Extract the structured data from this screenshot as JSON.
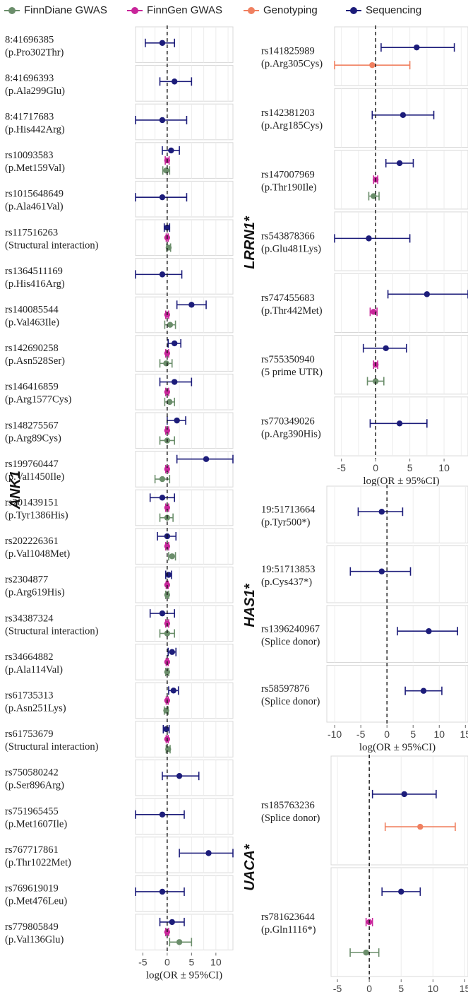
{
  "legend": [
    {
      "label": "FinnDiane GWAS",
      "color": "#6b8e6b",
      "key": "finndiane"
    },
    {
      "label": "FinnGen GWAS",
      "color": "#c8259a",
      "key": "finngen"
    },
    {
      "label": "Genotyping",
      "color": "#f08060",
      "key": "genotyping"
    },
    {
      "label": "Sequencing",
      "color": "#1c1c7a",
      "key": "sequencing"
    }
  ],
  "chart_data": [
    {
      "type": "forest",
      "gene": "ANK1",
      "xlabel": "log(OR ± 95%CI)",
      "xlim": [
        -6.5,
        13.5
      ],
      "xticks": [
        -5,
        0,
        5,
        10
      ],
      "grid": true,
      "variants": [
        {
          "id": "8:41696385",
          "desc": "(p.Pro302Thr)",
          "points": [
            {
              "source": "sequencing",
              "est": -1.0,
              "lo": -4.5,
              "hi": 1.5
            }
          ]
        },
        {
          "id": "8:41696393",
          "desc": "(p.Ala299Glu)",
          "points": [
            {
              "source": "sequencing",
              "est": 1.5,
              "lo": -1.5,
              "hi": 5.0
            }
          ]
        },
        {
          "id": "8:41717683",
          "desc": "(p.His442Arg)",
          "points": [
            {
              "source": "sequencing",
              "est": -1.0,
              "lo": -6.5,
              "hi": 4.0
            }
          ]
        },
        {
          "id": "rs10093583",
          "desc": "(p.Met159Val)",
          "points": [
            {
              "source": "sequencing",
              "est": 0.8,
              "lo": -1.0,
              "hi": 2.5
            },
            {
              "source": "finngen",
              "est": 0.0,
              "lo": -0.4,
              "hi": 0.4
            },
            {
              "source": "finndiane",
              "est": -0.2,
              "lo": -0.9,
              "hi": 0.5
            }
          ]
        },
        {
          "id": "rs1015648649",
          "desc": "(p.Ala461Val)",
          "points": [
            {
              "source": "sequencing",
              "est": -1.0,
              "lo": -6.5,
              "hi": 4.0
            }
          ]
        },
        {
          "id": "rs117516263",
          "desc": "(Structural interaction)",
          "points": [
            {
              "source": "sequencing",
              "est": 0.0,
              "lo": -0.6,
              "hi": 0.5
            },
            {
              "source": "finngen",
              "est": 0.0,
              "lo": -0.2,
              "hi": 0.2
            },
            {
              "source": "finndiane",
              "est": 0.3,
              "lo": -0.1,
              "hi": 0.7
            }
          ]
        },
        {
          "id": "rs1364511169",
          "desc": "(p.His416Arg)",
          "points": [
            {
              "source": "sequencing",
              "est": -1.0,
              "lo": -6.5,
              "hi": 3.0
            }
          ]
        },
        {
          "id": "rs140085544",
          "desc": "(p.Val463Ile)",
          "points": [
            {
              "source": "sequencing",
              "est": 5.0,
              "lo": 2.0,
              "hi": 8.0
            },
            {
              "source": "finngen",
              "est": 0.0,
              "lo": -0.3,
              "hi": 0.3
            },
            {
              "source": "finndiane",
              "est": 0.6,
              "lo": -0.5,
              "hi": 1.7
            }
          ]
        },
        {
          "id": "rs142690258",
          "desc": "(p.Asn528Ser)",
          "points": [
            {
              "source": "sequencing",
              "est": 1.5,
              "lo": 0.2,
              "hi": 2.8
            },
            {
              "source": "finngen",
              "est": 0.0,
              "lo": -0.3,
              "hi": 0.3
            },
            {
              "source": "finndiane",
              "est": -0.2,
              "lo": -1.5,
              "hi": 1.0
            }
          ]
        },
        {
          "id": "rs146416859",
          "desc": "(p.Arg1577Cys)",
          "points": [
            {
              "source": "sequencing",
              "est": 1.5,
              "lo": -1.5,
              "hi": 5.0
            },
            {
              "source": "finngen",
              "est": 0.0,
              "lo": -0.3,
              "hi": 0.3
            },
            {
              "source": "finndiane",
              "est": 0.5,
              "lo": -0.5,
              "hi": 1.5
            }
          ]
        },
        {
          "id": "rs148275567",
          "desc": "(p.Arg89Cys)",
          "points": [
            {
              "source": "sequencing",
              "est": 2.0,
              "lo": 0.0,
              "hi": 3.8
            },
            {
              "source": "finngen",
              "est": 0.0,
              "lo": -0.3,
              "hi": 0.3
            },
            {
              "source": "finndiane",
              "est": 0.0,
              "lo": -1.5,
              "hi": 1.5
            }
          ]
        },
        {
          "id": "rs199760447",
          "desc": "(p.Val1450Ile)",
          "points": [
            {
              "source": "sequencing",
              "est": 8.0,
              "lo": 2.0,
              "hi": 13.5
            },
            {
              "source": "finngen",
              "est": 0.0,
              "lo": -0.3,
              "hi": 0.3
            },
            {
              "source": "finndiane",
              "est": -1.0,
              "lo": -2.5,
              "hi": 0.5
            }
          ]
        },
        {
          "id": "rs201439151",
          "desc": "(p.Tyr1386His)",
          "points": [
            {
              "source": "sequencing",
              "est": -1.0,
              "lo": -3.5,
              "hi": 1.5
            },
            {
              "source": "finngen",
              "est": 0.0,
              "lo": -0.3,
              "hi": 0.3
            },
            {
              "source": "finndiane",
              "est": 0.0,
              "lo": -1.5,
              "hi": 1.2
            }
          ]
        },
        {
          "id": "rs202226361",
          "desc": "(p.Val1048Met)",
          "points": [
            {
              "source": "sequencing",
              "est": 0.0,
              "lo": -2.0,
              "hi": 1.8
            },
            {
              "source": "finngen",
              "est": 0.0,
              "lo": -0.3,
              "hi": 0.3
            },
            {
              "source": "finndiane",
              "est": 1.0,
              "lo": 0.3,
              "hi": 1.7
            }
          ]
        },
        {
          "id": "rs2304877",
          "desc": "(p.Arg619His)",
          "points": [
            {
              "source": "sequencing",
              "est": 0.3,
              "lo": -0.3,
              "hi": 0.9
            },
            {
              "source": "finngen",
              "est": 0.0,
              "lo": -0.2,
              "hi": 0.2
            },
            {
              "source": "finndiane",
              "est": 0.0,
              "lo": -0.3,
              "hi": 0.3
            }
          ]
        },
        {
          "id": "rs34387324",
          "desc": "(Structural interaction)",
          "points": [
            {
              "source": "sequencing",
              "est": -1.0,
              "lo": -3.5,
              "hi": 1.5
            },
            {
              "source": "finngen",
              "est": 0.0,
              "lo": -0.3,
              "hi": 0.3
            },
            {
              "source": "finndiane",
              "est": 0.0,
              "lo": -1.5,
              "hi": 1.5
            }
          ]
        },
        {
          "id": "rs34664882",
          "desc": "(p.Ala114Val)",
          "points": [
            {
              "source": "sequencing",
              "est": 1.0,
              "lo": 0.2,
              "hi": 1.8
            },
            {
              "source": "finngen",
              "est": 0.0,
              "lo": -0.2,
              "hi": 0.2
            },
            {
              "source": "finndiane",
              "est": 0.0,
              "lo": -0.3,
              "hi": 0.3
            }
          ]
        },
        {
          "id": "rs61735313",
          "desc": "(p.Asn251Lys)",
          "points": [
            {
              "source": "sequencing",
              "est": 1.3,
              "lo": 0.3,
              "hi": 2.3
            },
            {
              "source": "finngen",
              "est": 0.0,
              "lo": -0.2,
              "hi": 0.2
            },
            {
              "source": "finndiane",
              "est": -0.2,
              "lo": -0.6,
              "hi": 0.2
            }
          ]
        },
        {
          "id": "rs61753679",
          "desc": "(Structural interaction)",
          "points": [
            {
              "source": "sequencing",
              "est": -0.2,
              "lo": -0.8,
              "hi": 0.4
            },
            {
              "source": "finngen",
              "est": 0.0,
              "lo": -0.2,
              "hi": 0.2
            },
            {
              "source": "finndiane",
              "est": 0.2,
              "lo": -0.2,
              "hi": 0.6
            }
          ]
        },
        {
          "id": "rs750580242",
          "desc": "(p.Ser896Arg)",
          "points": [
            {
              "source": "sequencing",
              "est": 2.5,
              "lo": -1.0,
              "hi": 6.5
            }
          ]
        },
        {
          "id": "rs751965455",
          "desc": "(p.Met1607Ile)",
          "points": [
            {
              "source": "sequencing",
              "est": -1.0,
              "lo": -6.5,
              "hi": 3.5
            }
          ]
        },
        {
          "id": "rs767717861",
          "desc": "(p.Thr1022Met)",
          "points": [
            {
              "source": "sequencing",
              "est": 8.5,
              "lo": 2.5,
              "hi": 13.5
            }
          ]
        },
        {
          "id": "rs769619019",
          "desc": "(p.Met476Leu)",
          "points": [
            {
              "source": "sequencing",
              "est": -1.0,
              "lo": -6.5,
              "hi": 3.5
            }
          ]
        },
        {
          "id": "rs779805849",
          "desc": "(p.Val136Glu)",
          "points": [
            {
              "source": "sequencing",
              "est": 1.0,
              "lo": -1.5,
              "hi": 3.5
            },
            {
              "source": "finngen",
              "est": 0.0,
              "lo": -0.3,
              "hi": 0.3
            },
            {
              "source": "finndiane",
              "est": 2.5,
              "lo": 0.5,
              "hi": 5.0
            }
          ]
        }
      ]
    },
    {
      "type": "forest",
      "gene": "LRRN1*",
      "xlabel": "log(OR ± 95%CI)",
      "xlim": [
        -6,
        13.5
      ],
      "xticks": [
        -5,
        0,
        5,
        10
      ],
      "grid": true,
      "variants": [
        {
          "id": "rs141825989",
          "desc": "(p.Arg305Cys)",
          "points": [
            {
              "source": "sequencing",
              "est": 6.0,
              "lo": 0.8,
              "hi": 11.5
            },
            {
              "source": "genotyping",
              "est": -0.5,
              "lo": -6.0,
              "hi": 5.0
            }
          ]
        },
        {
          "id": "rs142381203",
          "desc": "(p.Arg185Cys)",
          "points": [
            {
              "source": "sequencing",
              "est": 4.0,
              "lo": -0.5,
              "hi": 8.5
            }
          ]
        },
        {
          "id": "rs147007969",
          "desc": "(p.Thr190Ile)",
          "points": [
            {
              "source": "sequencing",
              "est": 3.5,
              "lo": 1.5,
              "hi": 5.5
            },
            {
              "source": "finngen",
              "est": 0.0,
              "lo": -0.3,
              "hi": 0.3
            },
            {
              "source": "finndiane",
              "est": -0.3,
              "lo": -1.0,
              "hi": 0.5
            }
          ]
        },
        {
          "id": "rs543878366",
          "desc": "(p.Glu481Lys)",
          "points": [
            {
              "source": "sequencing",
              "est": -1.0,
              "lo": -6.0,
              "hi": 5.0
            }
          ]
        },
        {
          "id": "rs747455683",
          "desc": "(p.Thr442Met)",
          "points": [
            {
              "source": "sequencing",
              "est": 7.5,
              "lo": 1.8,
              "hi": 13.5
            },
            {
              "source": "finngen",
              "est": -0.3,
              "lo": -0.8,
              "hi": 0.2
            }
          ]
        },
        {
          "id": "rs755350940",
          "desc": "(5 prime UTR)",
          "points": [
            {
              "source": "sequencing",
              "est": 1.5,
              "lo": -1.8,
              "hi": 4.5
            },
            {
              "source": "finngen",
              "est": 0.0,
              "lo": -0.3,
              "hi": 0.3
            },
            {
              "source": "finndiane",
              "est": 0.0,
              "lo": -1.2,
              "hi": 1.2
            }
          ]
        },
        {
          "id": "rs770349026",
          "desc": "(p.Arg390His)",
          "points": [
            {
              "source": "sequencing",
              "est": 3.5,
              "lo": -0.8,
              "hi": 7.5
            }
          ]
        }
      ]
    },
    {
      "type": "forest",
      "gene": "HAS1*",
      "xlabel": "log(OR ± 95%CI)",
      "xlim": [
        -11.5,
        15.5
      ],
      "xticks": [
        -10,
        -5,
        0,
        5,
        10,
        15
      ],
      "grid": true,
      "variants": [
        {
          "id": "19:51713664",
          "desc": "(p.Tyr500*)",
          "points": [
            {
              "source": "sequencing",
              "est": -1.0,
              "lo": -5.5,
              "hi": 3.0
            }
          ]
        },
        {
          "id": "19:51713853",
          "desc": "(p.Cys437*)",
          "points": [
            {
              "source": "sequencing",
              "est": -1.0,
              "lo": -7.0,
              "hi": 4.5
            }
          ]
        },
        {
          "id": "rs1396240967",
          "desc": "(Splice donor)",
          "points": [
            {
              "source": "sequencing",
              "est": 8.0,
              "lo": 2.0,
              "hi": 13.5
            }
          ]
        },
        {
          "id": "rs58597876",
          "desc": "(Splice donor)",
          "points": [
            {
              "source": "sequencing",
              "est": 7.0,
              "lo": 3.5,
              "hi": 10.5
            }
          ]
        }
      ]
    },
    {
      "type": "forest",
      "gene": "UACA*",
      "xlabel": "log(OR ± 95%CI)",
      "xlim": [
        -6,
        15.5
      ],
      "xticks": [
        -5,
        0,
        5,
        10,
        15
      ],
      "grid": true,
      "variants": [
        {
          "id": "rs185763236",
          "desc": "(Splice donor)",
          "points": [
            {
              "source": "sequencing",
              "est": 5.5,
              "lo": 0.5,
              "hi": 10.5
            },
            {
              "source": "genotyping",
              "est": 8.0,
              "lo": 2.5,
              "hi": 13.5
            }
          ]
        },
        {
          "id": "rs781623644",
          "desc": "(p.Gln1116*)",
          "points": [
            {
              "source": "sequencing",
              "est": 5.0,
              "lo": 2.0,
              "hi": 8.0
            },
            {
              "source": "finngen",
              "est": 0.0,
              "lo": -0.5,
              "hi": 0.5
            },
            {
              "source": "finndiane",
              "est": -0.5,
              "lo": -3.0,
              "hi": 1.5
            }
          ]
        }
      ]
    }
  ]
}
